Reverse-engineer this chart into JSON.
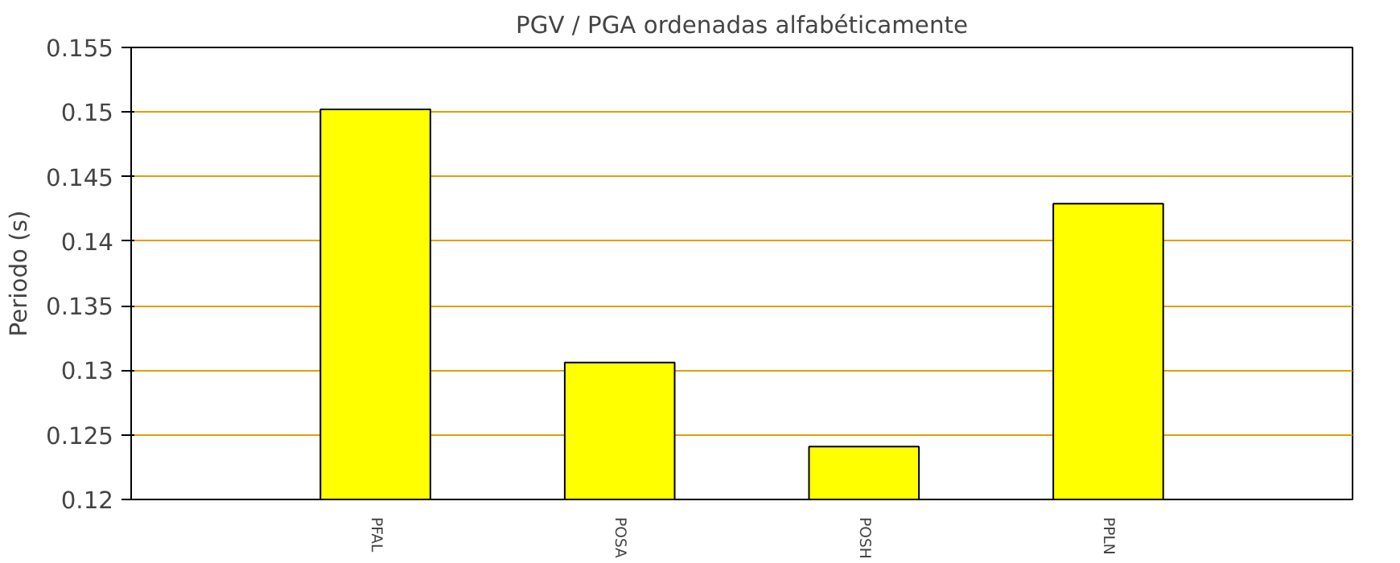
{
  "chart_data": {
    "type": "bar",
    "title": "PGV / PGA ordenadas alfabéticamente",
    "ylabel": "Periodo (s)",
    "categories": [
      "PFAL",
      "POSA",
      "POSH",
      "PPLN"
    ],
    "values": [
      0.1502,
      0.1306,
      0.1241,
      0.1429
    ],
    "color": "#ffff00",
    "ylim": [
      0.12,
      0.155
    ],
    "yticks": [
      0.12,
      0.125,
      0.13,
      0.135,
      0.14,
      0.145,
      0.15,
      0.155
    ],
    "grid": "y"
  }
}
